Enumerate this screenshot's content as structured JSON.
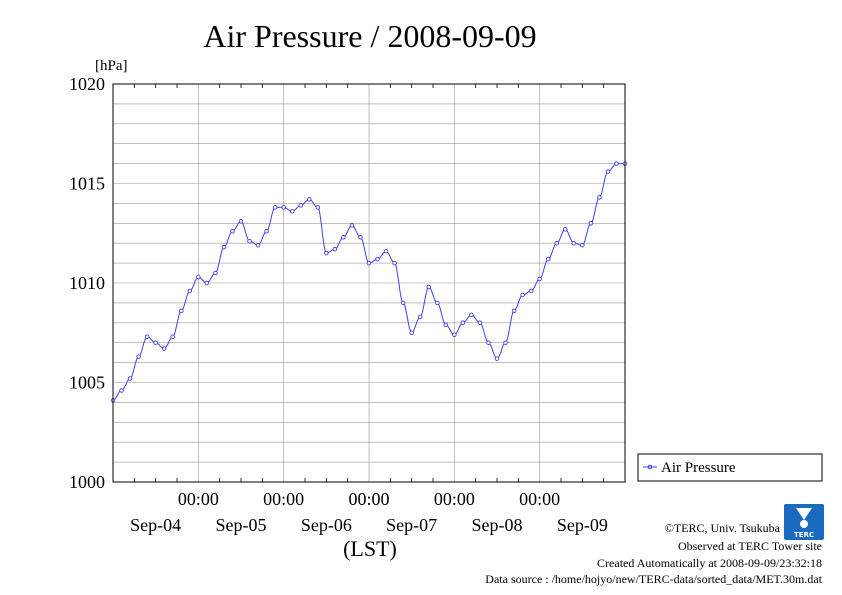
{
  "chart_data": {
    "type": "line",
    "title": "Air Pressure / 2008-09-09",
    "unit_label": "[hPa]",
    "xlabel": "(LST)",
    "x_time_labels": [
      "00:00",
      "00:00",
      "00:00",
      "00:00",
      "00:00"
    ],
    "x_day_labels": [
      "Sep-04",
      "Sep-05",
      "Sep-06",
      "Sep-07",
      "Sep-08",
      "Sep-09"
    ],
    "ylim": [
      1000,
      1020
    ],
    "y_ticks": [
      "1000",
      "1005",
      "1010",
      "1015",
      "1020"
    ],
    "xlim_days": [
      0,
      6
    ],
    "grid": true,
    "legend_position": "right",
    "series": [
      {
        "name": "Air Pressure",
        "color": "#4040ee",
        "x_days": [
          0,
          0.1,
          0.2,
          0.3,
          0.4,
          0.5,
          0.6,
          0.7,
          0.8,
          0.9,
          1,
          1.1,
          1.2,
          1.3,
          1.4,
          1.5,
          1.6,
          1.7,
          1.8,
          1.9,
          2,
          2.1,
          2.2,
          2.3,
          2.4,
          2.5,
          2.6,
          2.7,
          2.8,
          2.9,
          3,
          3.1,
          3.2,
          3.3,
          3.4,
          3.5,
          3.6,
          3.7,
          3.8,
          3.9,
          4,
          4.1,
          4.2,
          4.3,
          4.4,
          4.5,
          4.6,
          4.7,
          4.8,
          4.9,
          5,
          5.1,
          5.2,
          5.3,
          5.4,
          5.5,
          5.6,
          5.7,
          5.8,
          5.9,
          6
        ],
        "values": [
          1004.1,
          1004.6,
          1005.2,
          1006.3,
          1007.3,
          1007.0,
          1006.7,
          1007.3,
          1008.6,
          1009.6,
          1010.3,
          1010.0,
          1010.5,
          1011.8,
          1012.6,
          1013.1,
          1012.1,
          1011.9,
          1012.6,
          1013.8,
          1013.8,
          1013.6,
          1013.9,
          1014.2,
          1013.8,
          1011.5,
          1011.7,
          1012.3,
          1012.9,
          1012.3,
          1011.0,
          1011.2,
          1011.6,
          1011.0,
          1009.0,
          1007.5,
          1008.3,
          1009.8,
          1009.0,
          1007.9,
          1007.4,
          1008.0,
          1008.4,
          1008.0,
          1007.0,
          1006.2,
          1007.0,
          1008.6,
          1009.4,
          1009.6,
          1010.2,
          1011.2,
          1012.0,
          1012.7,
          1012.0,
          1011.9,
          1013.0,
          1014.3,
          1015.6,
          1016.0,
          1016.0
        ]
      }
    ]
  },
  "credits": {
    "copyright": "©TERC, Univ. Tsukuba",
    "observed": "Observed at TERC Tower site",
    "created": "Created Automatically at 2008-09-09/23:32:18",
    "source": "Data source : /home/hojyo/new/TERC-data/sorted_data/MET.30m.dat",
    "logo_text": "TERC"
  }
}
